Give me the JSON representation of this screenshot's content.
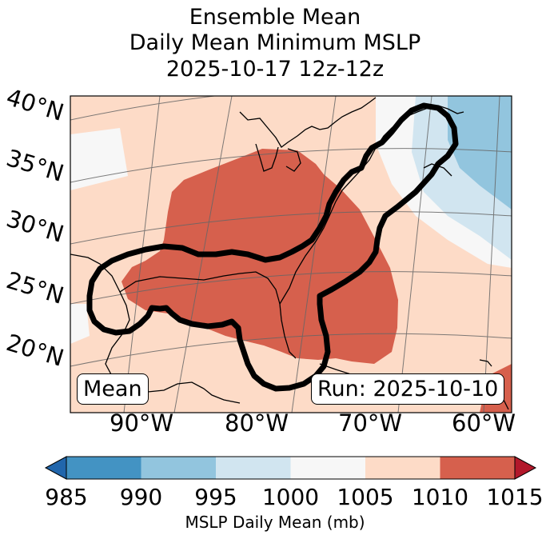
{
  "title": {
    "line1": "Ensemble Mean",
    "line2": "Daily Mean Minimum MSLP",
    "line3": "2025-10-17 12z-12z"
  },
  "map": {
    "lat_labels": [
      "40°N",
      "35°N",
      "30°N",
      "25°N",
      "20°N"
    ],
    "lon_labels": [
      "90°W",
      "80°W",
      "70°W",
      "60°W"
    ],
    "mean_box": "Mean",
    "run_box": "Run: 2025-10-10"
  },
  "colorbar": {
    "ticks": [
      "985",
      "990",
      "995",
      "1000",
      "1005",
      "1010",
      "1015"
    ],
    "label": "MSLP Daily Mean (mb)",
    "colors": [
      "#2166ac",
      "#4393c3",
      "#92c5de",
      "#d1e5f0",
      "#f7f7f7",
      "#fddbc7",
      "#d6604d",
      "#b2182b"
    ]
  }
}
